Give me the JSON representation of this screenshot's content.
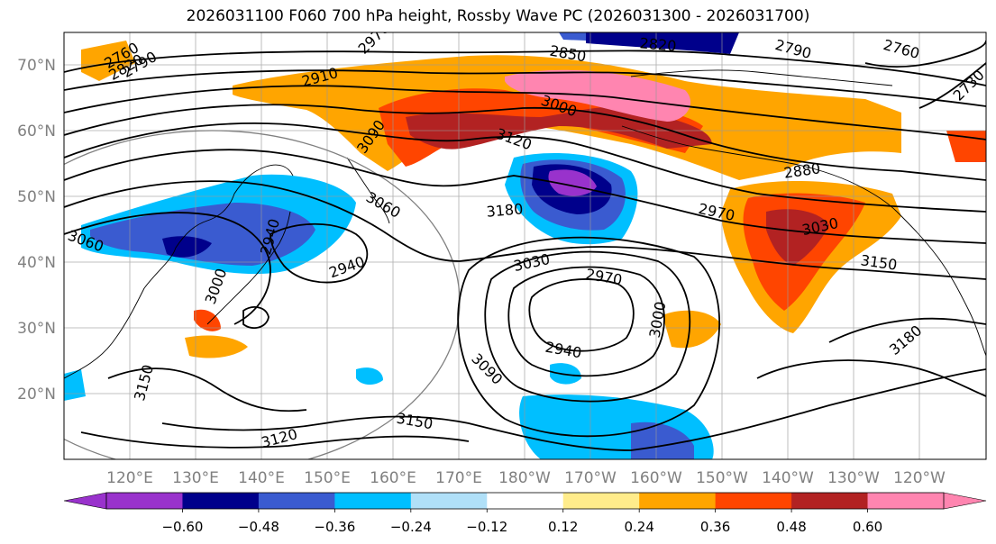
{
  "title": "2026031100 F060 700 hPa height, Rossby Wave PC (2026031300 - 2026031700)",
  "map": {
    "lat_ticks": [
      "70°N",
      "60°N",
      "50°N",
      "40°N",
      "30°N",
      "20°N"
    ],
    "lon_ticks": [
      "120°E",
      "130°E",
      "140°E",
      "150°E",
      "160°E",
      "170°E",
      "180°W",
      "170°W",
      "160°W",
      "150°W",
      "140°W",
      "130°W",
      "120°W"
    ],
    "contour_labels": [
      "2760",
      "2790",
      "2820",
      "2850",
      "2820",
      "2790",
      "2760",
      "2730",
      "2910",
      "3000",
      "3090",
      "3120",
      "2880",
      "2970",
      "3030",
      "3150",
      "3180",
      "3060",
      "2940",
      "3030",
      "2970",
      "3000",
      "2940",
      "3090",
      "3120",
      "3150",
      "3150",
      "3180",
      "3060",
      "3000",
      "2940",
      "2970"
    ],
    "shading_colors": {
      "neg_060": "#9932cc",
      "neg_048": "#00008b",
      "neg_036": "#3a5bd0",
      "neg_024": "#00bfff",
      "neg_012": "#b0e0f8",
      "pos_012": "#ffec8b",
      "pos_024": "#ffa500",
      "pos_036": "#ff4500",
      "pos_048": "#b22222",
      "pos_060": "#ff85b0"
    }
  },
  "colorbar": {
    "labels": [
      "−0.60",
      "−0.48",
      "−0.36",
      "−0.24",
      "−0.12",
      "0.12",
      "0.24",
      "0.36",
      "0.48",
      "0.60"
    ],
    "colors": [
      "#9932cc",
      "#00008b",
      "#3a5bd0",
      "#00bfff",
      "#b0e0f8",
      "#ffffff",
      "#ffec8b",
      "#ffa500",
      "#ff4500",
      "#b22222",
      "#ff85b0"
    ]
  }
}
